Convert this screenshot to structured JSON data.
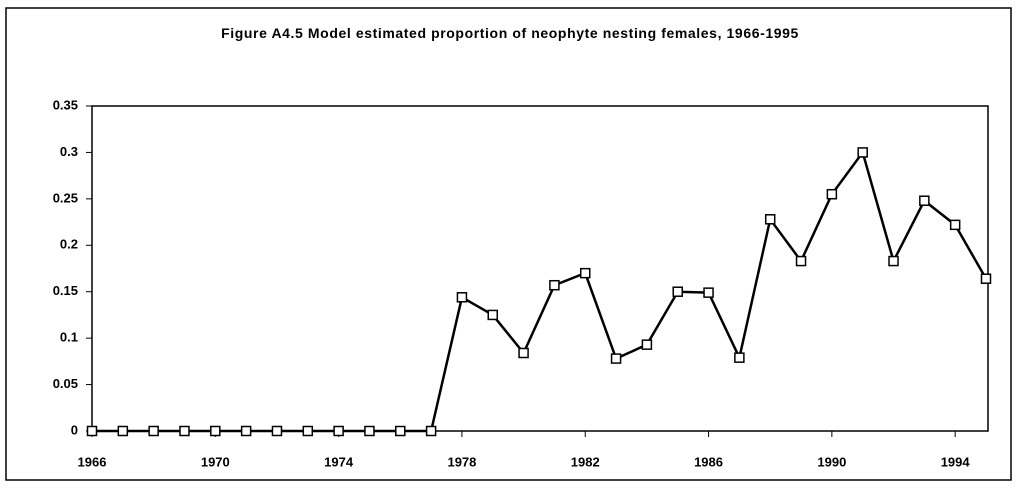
{
  "chart_data": {
    "type": "line",
    "title": "Figure A4.5  Model estimated proportion of neophyte nesting females, 1966-1995",
    "x": [
      1966,
      1967,
      1968,
      1969,
      1970,
      1971,
      1972,
      1973,
      1974,
      1975,
      1976,
      1977,
      1978,
      1979,
      1980,
      1981,
      1982,
      1983,
      1984,
      1985,
      1986,
      1987,
      1988,
      1989,
      1990,
      1991,
      1992,
      1993,
      1994,
      1995
    ],
    "series": [
      {
        "color": "#000000",
        "values": [
          0,
          0,
          0,
          0,
          0,
          0,
          0,
          0,
          0,
          0,
          0,
          0,
          0.144,
          0.125,
          0.084,
          0.157,
          0.17,
          0.078,
          0.093,
          0.15,
          0.149,
          0.079,
          0.228,
          0.183,
          0.255,
          0.3,
          0.183,
          0.248,
          0.222,
          0.164
        ]
      }
    ],
    "xlim": [
      1966,
      1995
    ],
    "xticks": [
      1966,
      1970,
      1974,
      1978,
      1982,
      1986,
      1990,
      1994
    ],
    "ylim": [
      0,
      0.35
    ],
    "yticks": [
      0,
      0.05,
      0.1,
      0.15,
      0.2,
      0.25,
      0.3,
      0.35
    ],
    "grid": false
  }
}
